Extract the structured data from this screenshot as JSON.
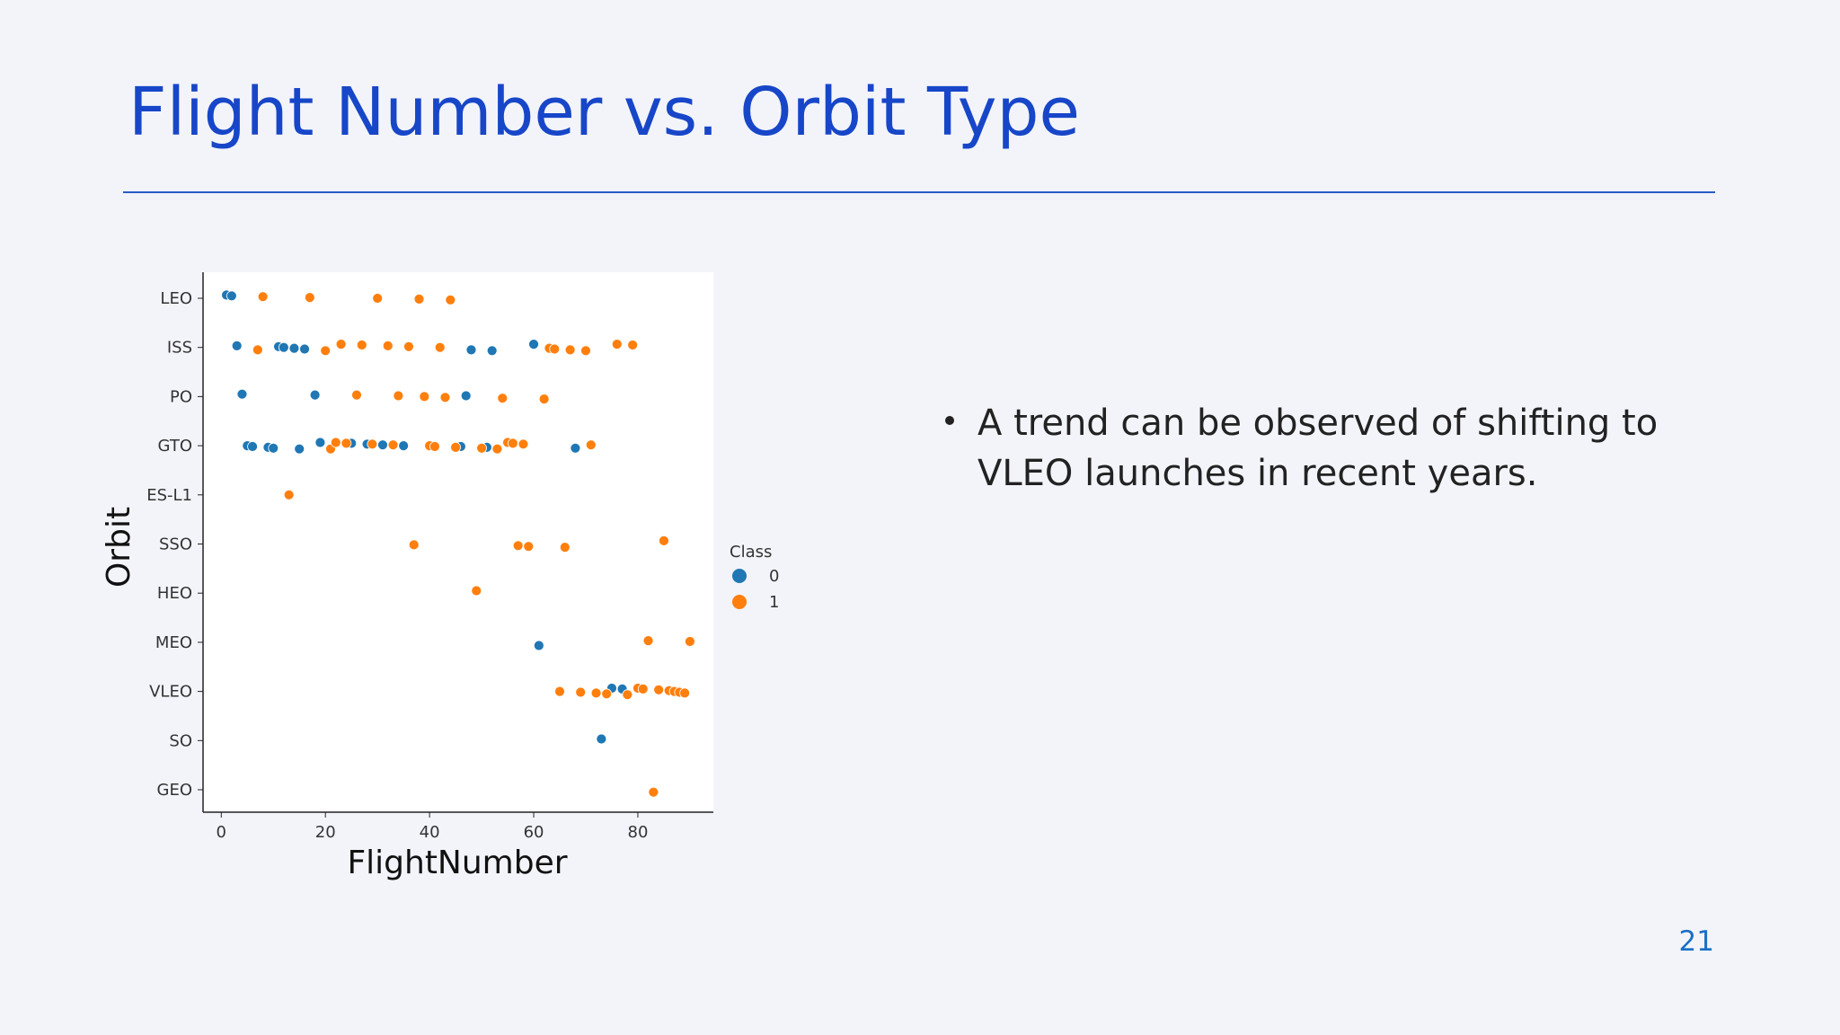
{
  "slide": {
    "title": "Flight Number vs. Orbit Type",
    "bullets": [
      "A trend can be observed of shifting to VLEO launches in recent years."
    ],
    "page_number": "21"
  },
  "chart_data": {
    "type": "strip",
    "x_label": "FlightNumber",
    "y_label": "Orbit",
    "legend_title": "Class",
    "categories": [
      "LEO",
      "ISS",
      "PO",
      "GTO",
      "ES-L1",
      "SSO",
      "HEO",
      "MEO",
      "VLEO",
      "SO",
      "GEO"
    ],
    "xlim": [
      -3.5,
      94.5
    ],
    "xticks": [
      0,
      20,
      40,
      60,
      80
    ],
    "series": [
      {
        "name": "0",
        "color": "#1f77b4",
        "x": [
          1,
          2,
          3,
          11,
          12,
          14,
          16,
          48,
          52,
          60,
          4,
          18,
          47,
          5,
          6,
          9,
          10,
          15,
          19,
          25,
          28,
          31,
          35,
          46,
          51,
          68,
          61,
          75,
          77,
          73
        ],
        "values": [
          "LEO",
          "LEO",
          "ISS",
          "ISS",
          "ISS",
          "ISS",
          "ISS",
          "ISS",
          "ISS",
          "ISS",
          "PO",
          "PO",
          "PO",
          "GTO",
          "GTO",
          "GTO",
          "GTO",
          "GTO",
          "GTO",
          "GTO",
          "GTO",
          "GTO",
          "GTO",
          "GTO",
          "GTO",
          "GTO",
          "MEO",
          "VLEO",
          "VLEO",
          "SO"
        ]
      },
      {
        "name": "1",
        "color": "#ff7f0e",
        "x": [
          8,
          17,
          30,
          38,
          44,
          7,
          20,
          23,
          27,
          32,
          36,
          42,
          63,
          64,
          67,
          70,
          76,
          79,
          26,
          34,
          39,
          43,
          54,
          62,
          21,
          22,
          24,
          29,
          33,
          40,
          41,
          45,
          50,
          53,
          55,
          56,
          58,
          71,
          13,
          37,
          57,
          59,
          66,
          85,
          49,
          82,
          90,
          65,
          69,
          72,
          74,
          78,
          80,
          81,
          84,
          86,
          87,
          88,
          89,
          83
        ],
        "values": [
          "LEO",
          "LEO",
          "LEO",
          "LEO",
          "LEO",
          "ISS",
          "ISS",
          "ISS",
          "ISS",
          "ISS",
          "ISS",
          "ISS",
          "ISS",
          "ISS",
          "ISS",
          "ISS",
          "ISS",
          "ISS",
          "PO",
          "PO",
          "PO",
          "PO",
          "PO",
          "PO",
          "GTO",
          "GTO",
          "GTO",
          "GTO",
          "GTO",
          "GTO",
          "GTO",
          "GTO",
          "GTO",
          "GTO",
          "GTO",
          "GTO",
          "GTO",
          "GTO",
          "ES-L1",
          "SSO",
          "SSO",
          "SSO",
          "SSO",
          "SSO",
          "HEO",
          "MEO",
          "MEO",
          "VLEO",
          "VLEO",
          "VLEO",
          "VLEO",
          "VLEO",
          "VLEO",
          "VLEO",
          "VLEO",
          "VLEO",
          "VLEO",
          "VLEO",
          "VLEO",
          "GEO"
        ]
      }
    ]
  }
}
